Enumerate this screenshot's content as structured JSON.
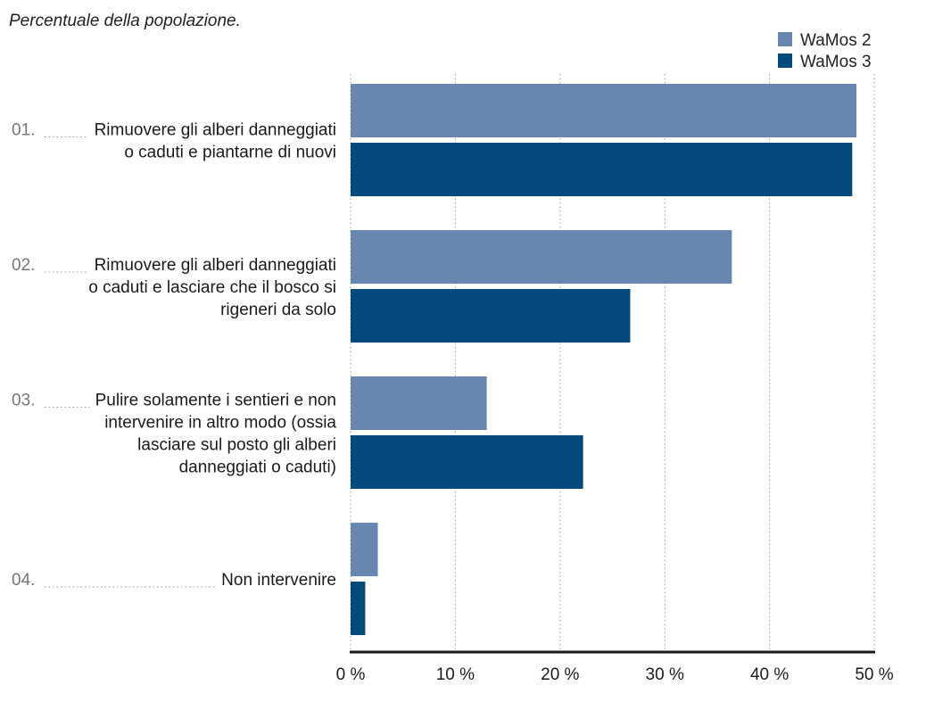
{
  "chart_data": {
    "type": "bar",
    "orientation": "horizontal",
    "title": "",
    "subtitle": "Percentuale della popolazione.",
    "categories": [
      {
        "num": "01.",
        "lines": [
          "Rimuovere gli alberi danneggiati",
          "o caduti e piantarne di nuovi"
        ]
      },
      {
        "num": "02.",
        "lines": [
          "Rimuovere gli alberi danneggiati",
          "o caduti e lasciare che il bosco si",
          "rigeneri da solo"
        ]
      },
      {
        "num": "03.",
        "lines": [
          "Pulire solamente i sentieri e non",
          "intervenire in altro modo (ossia",
          "lasciare sul posto gli alberi",
          "danneggiati o caduti)"
        ]
      },
      {
        "num": "04.",
        "lines": [
          "Non intervenire"
        ]
      }
    ],
    "series": [
      {
        "name": "WaMos 2",
        "color": "#6787b0",
        "values": [
          48.3,
          36.4,
          13.0,
          2.6
        ]
      },
      {
        "name": "WaMos 3",
        "color": "#044a7c",
        "values": [
          47.9,
          26.7,
          22.2,
          1.4
        ]
      }
    ],
    "xlim": [
      0,
      50
    ],
    "ticks": [
      0,
      10,
      20,
      30,
      40,
      50
    ],
    "tick_labels": [
      "0 %",
      "10 %",
      "20 %",
      "30 %",
      "40 %",
      "50 %"
    ],
    "grid": true,
    "legend_position": "top-right"
  }
}
